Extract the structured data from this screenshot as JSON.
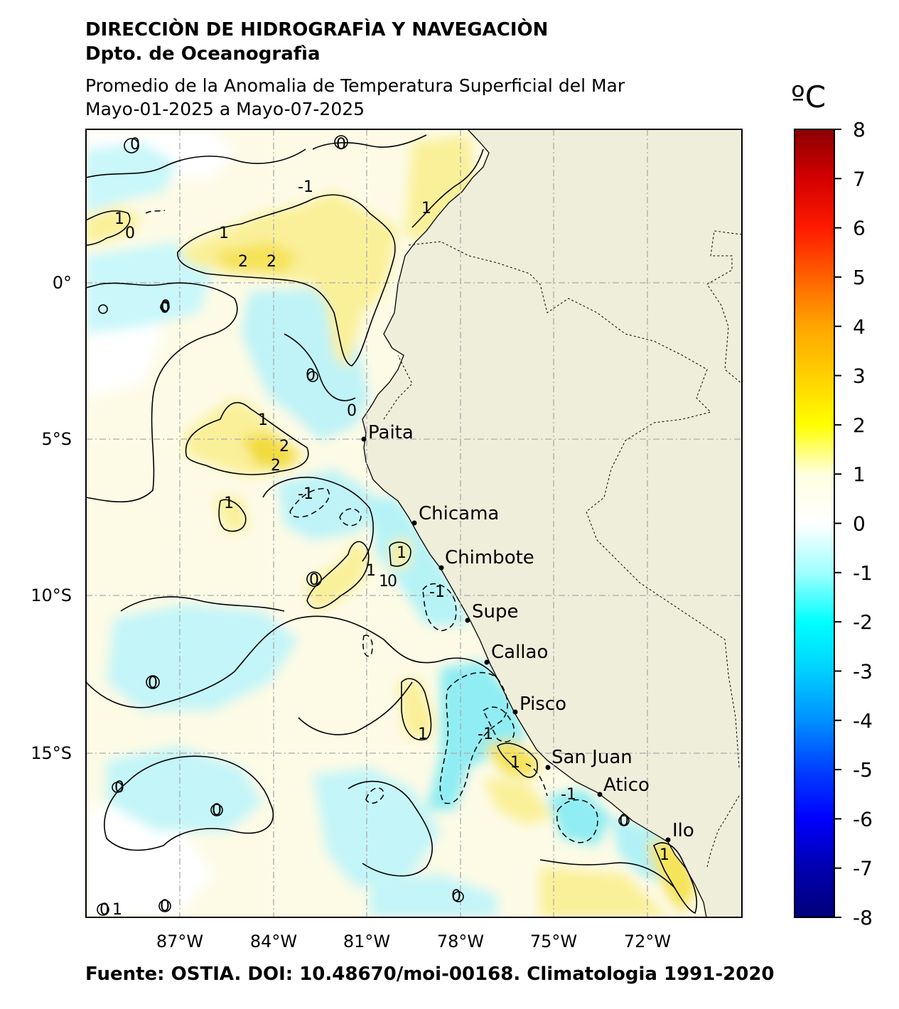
{
  "header": {
    "institution": "DIRECCIÒN DE HIDROGRAFÌA Y NAVEGACIÒN",
    "department": "Dpto. de Oceanografìa",
    "title": "Promedio de la Anomalia de Temperatura Superficial del Mar",
    "period": "Mayo-01-2025 a Mayo-07-2025"
  },
  "footer": {
    "source": "Fuente: OSTIA. DOI: 10.48670/moi-00168. Climatologia 1991-2020"
  },
  "colorbar": {
    "unit": "ºC",
    "range": [
      -8,
      8
    ],
    "ticks": [
      "8",
      "7",
      "6",
      "5",
      "4",
      "3",
      "2",
      "1",
      "0",
      "-1",
      "-2",
      "-3",
      "-4",
      "-5",
      "-6",
      "-7",
      "-8"
    ],
    "colors": [
      "#8b0000",
      "#d40000",
      "#ff1a00",
      "#ff6000",
      "#ffa500",
      "#ffd000",
      "#ffff00",
      "#ffffe0",
      "#ffffff",
      "#a0ffff",
      "#00ffff",
      "#00d0ff",
      "#0090ff",
      "#0040ff",
      "#0000ff",
      "#0000b0",
      "#00007a"
    ]
  },
  "map": {
    "x_ticks": [
      "87°W",
      "84°W",
      "81°W",
      "78°W",
      "75°W",
      "72°W"
    ],
    "y_ticks": [
      "0°",
      "5°S",
      "10°S",
      "15°S"
    ],
    "ocean_base_color": "#fdfbe6",
    "land_color": "#efeedb",
    "cities": [
      {
        "name": "Paita"
      },
      {
        "name": "Chicama"
      },
      {
        "name": "Chimbote"
      },
      {
        "name": "Supe"
      },
      {
        "name": "Callao"
      },
      {
        "name": "Pisco"
      },
      {
        "name": "San Juan"
      },
      {
        "name": "Atico"
      },
      {
        "name": "Ilo"
      }
    ],
    "contour_labels": [
      "1",
      "0",
      "1",
      "0",
      "-1",
      "1",
      "2",
      "2",
      "0",
      "0",
      "0",
      "1",
      "2",
      "2",
      "-1",
      "1",
      "1",
      "1",
      "0",
      "1",
      "0",
      "-1",
      "0",
      "0",
      "1",
      "1",
      "-1",
      "-1",
      "0",
      "1",
      "0",
      "0",
      "0",
      "0",
      "0",
      "1",
      "0"
    ]
  }
}
